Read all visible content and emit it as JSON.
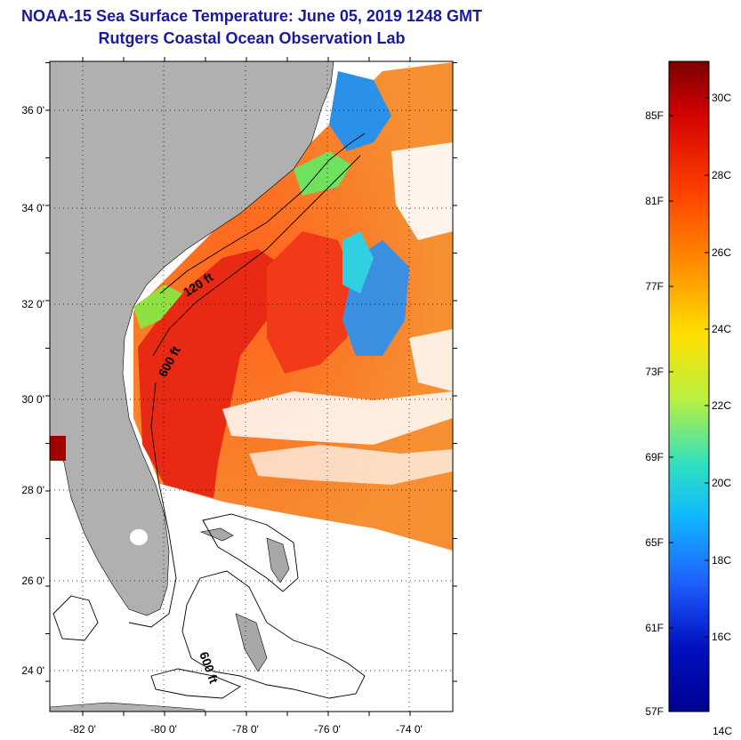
{
  "title_line1": "NOAA-15 Sea Surface Temperature:  June 05, 2019 1248 GMT",
  "title_line2": "Rutgers Coastal Ocean Observation Lab",
  "map": {
    "lat_ticks": [
      "36 0'",
      "34 0'",
      "32 0'",
      "30 0'",
      "28 0'",
      "26 0'",
      "24 0'"
    ],
    "lon_ticks": [
      "-82 0'",
      "-80 0'",
      "-78 0'",
      "-76 0'",
      "-74 0'"
    ],
    "contour_labels": [
      "120 ft",
      "600 ft",
      "600 ft"
    ],
    "colors": {
      "land": "#b0b0b0",
      "ocean_warm": "#f27a1c",
      "gulf_stream": "#e8281a",
      "cool_water": "#3a8fe0"
    }
  },
  "colorbar": {
    "fahrenheit_labels": [
      "85F",
      "81F",
      "77F",
      "73F",
      "69F",
      "65F",
      "61F",
      "57F"
    ],
    "celsius_labels": [
      "30C",
      "28C",
      "26C",
      "24C",
      "22C",
      "20C",
      "18C",
      "16C",
      "14C"
    ],
    "colors": [
      "#7a0000",
      "#d10000",
      "#ff4000",
      "#ff9a00",
      "#ffe000",
      "#b8f040",
      "#30e0c0",
      "#10b8ff",
      "#2060ff",
      "#0010c0",
      "#000090"
    ]
  }
}
